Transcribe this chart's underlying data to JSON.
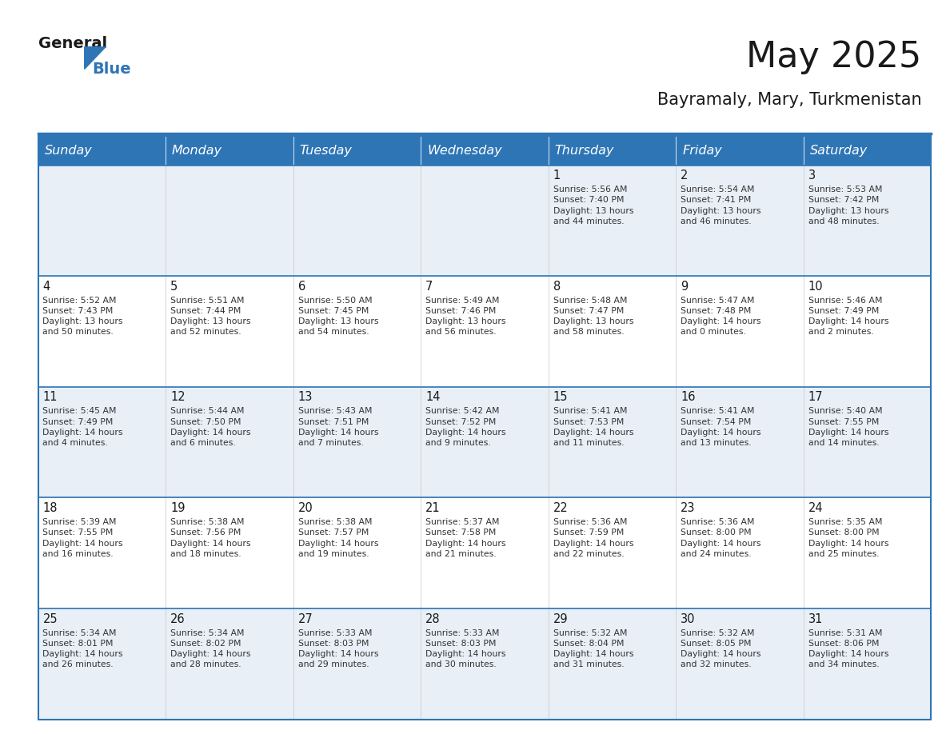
{
  "title": "May 2025",
  "subtitle": "Bayramaly, Mary, Turkmenistan",
  "header_bg": "#2E75B6",
  "header_text_color": "#FFFFFF",
  "row1_bg": "#E8EFF7",
  "row2_bg": "#FFFFFF",
  "day_headers": [
    "Sunday",
    "Monday",
    "Tuesday",
    "Wednesday",
    "Thursday",
    "Friday",
    "Saturday"
  ],
  "calendar": [
    [
      {
        "day": "",
        "info": ""
      },
      {
        "day": "",
        "info": ""
      },
      {
        "day": "",
        "info": ""
      },
      {
        "day": "",
        "info": ""
      },
      {
        "day": "1",
        "info": "Sunrise: 5:56 AM\nSunset: 7:40 PM\nDaylight: 13 hours\nand 44 minutes."
      },
      {
        "day": "2",
        "info": "Sunrise: 5:54 AM\nSunset: 7:41 PM\nDaylight: 13 hours\nand 46 minutes."
      },
      {
        "day": "3",
        "info": "Sunrise: 5:53 AM\nSunset: 7:42 PM\nDaylight: 13 hours\nand 48 minutes."
      }
    ],
    [
      {
        "day": "4",
        "info": "Sunrise: 5:52 AM\nSunset: 7:43 PM\nDaylight: 13 hours\nand 50 minutes."
      },
      {
        "day": "5",
        "info": "Sunrise: 5:51 AM\nSunset: 7:44 PM\nDaylight: 13 hours\nand 52 minutes."
      },
      {
        "day": "6",
        "info": "Sunrise: 5:50 AM\nSunset: 7:45 PM\nDaylight: 13 hours\nand 54 minutes."
      },
      {
        "day": "7",
        "info": "Sunrise: 5:49 AM\nSunset: 7:46 PM\nDaylight: 13 hours\nand 56 minutes."
      },
      {
        "day": "8",
        "info": "Sunrise: 5:48 AM\nSunset: 7:47 PM\nDaylight: 13 hours\nand 58 minutes."
      },
      {
        "day": "9",
        "info": "Sunrise: 5:47 AM\nSunset: 7:48 PM\nDaylight: 14 hours\nand 0 minutes."
      },
      {
        "day": "10",
        "info": "Sunrise: 5:46 AM\nSunset: 7:49 PM\nDaylight: 14 hours\nand 2 minutes."
      }
    ],
    [
      {
        "day": "11",
        "info": "Sunrise: 5:45 AM\nSunset: 7:49 PM\nDaylight: 14 hours\nand 4 minutes."
      },
      {
        "day": "12",
        "info": "Sunrise: 5:44 AM\nSunset: 7:50 PM\nDaylight: 14 hours\nand 6 minutes."
      },
      {
        "day": "13",
        "info": "Sunrise: 5:43 AM\nSunset: 7:51 PM\nDaylight: 14 hours\nand 7 minutes."
      },
      {
        "day": "14",
        "info": "Sunrise: 5:42 AM\nSunset: 7:52 PM\nDaylight: 14 hours\nand 9 minutes."
      },
      {
        "day": "15",
        "info": "Sunrise: 5:41 AM\nSunset: 7:53 PM\nDaylight: 14 hours\nand 11 minutes."
      },
      {
        "day": "16",
        "info": "Sunrise: 5:41 AM\nSunset: 7:54 PM\nDaylight: 14 hours\nand 13 minutes."
      },
      {
        "day": "17",
        "info": "Sunrise: 5:40 AM\nSunset: 7:55 PM\nDaylight: 14 hours\nand 14 minutes."
      }
    ],
    [
      {
        "day": "18",
        "info": "Sunrise: 5:39 AM\nSunset: 7:55 PM\nDaylight: 14 hours\nand 16 minutes."
      },
      {
        "day": "19",
        "info": "Sunrise: 5:38 AM\nSunset: 7:56 PM\nDaylight: 14 hours\nand 18 minutes."
      },
      {
        "day": "20",
        "info": "Sunrise: 5:38 AM\nSunset: 7:57 PM\nDaylight: 14 hours\nand 19 minutes."
      },
      {
        "day": "21",
        "info": "Sunrise: 5:37 AM\nSunset: 7:58 PM\nDaylight: 14 hours\nand 21 minutes."
      },
      {
        "day": "22",
        "info": "Sunrise: 5:36 AM\nSunset: 7:59 PM\nDaylight: 14 hours\nand 22 minutes."
      },
      {
        "day": "23",
        "info": "Sunrise: 5:36 AM\nSunset: 8:00 PM\nDaylight: 14 hours\nand 24 minutes."
      },
      {
        "day": "24",
        "info": "Sunrise: 5:35 AM\nSunset: 8:00 PM\nDaylight: 14 hours\nand 25 minutes."
      }
    ],
    [
      {
        "day": "25",
        "info": "Sunrise: 5:34 AM\nSunset: 8:01 PM\nDaylight: 14 hours\nand 26 minutes."
      },
      {
        "day": "26",
        "info": "Sunrise: 5:34 AM\nSunset: 8:02 PM\nDaylight: 14 hours\nand 28 minutes."
      },
      {
        "day": "27",
        "info": "Sunrise: 5:33 AM\nSunset: 8:03 PM\nDaylight: 14 hours\nand 29 minutes."
      },
      {
        "day": "28",
        "info": "Sunrise: 5:33 AM\nSunset: 8:03 PM\nDaylight: 14 hours\nand 30 minutes."
      },
      {
        "day": "29",
        "info": "Sunrise: 5:32 AM\nSunset: 8:04 PM\nDaylight: 14 hours\nand 31 minutes."
      },
      {
        "day": "30",
        "info": "Sunrise: 5:32 AM\nSunset: 8:05 PM\nDaylight: 14 hours\nand 32 minutes."
      },
      {
        "day": "31",
        "info": "Sunrise: 5:31 AM\nSunset: 8:06 PM\nDaylight: 14 hours\nand 34 minutes."
      }
    ]
  ],
  "logo_text1": "General",
  "logo_text2": "Blue",
  "logo_triangle_color": "#2E75B6",
  "logo_text1_color": "#1a1a1a",
  "logo_text2_color": "#2E75B6",
  "title_color": "#1a1a1a",
  "subtitle_color": "#1a1a1a",
  "cell_text_color": "#333333",
  "cell_day_color": "#1a1a1a",
  "divider_color": "#2E75B6",
  "cell_border_color": "#CCCCCC"
}
